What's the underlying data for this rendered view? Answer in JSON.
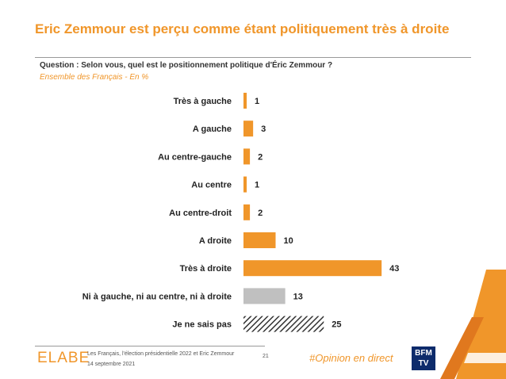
{
  "header": {
    "title": "Eric Zemmour est perçu comme étant politiquement très à droite",
    "question": "Question : Selon vous, quel est le positionnement politique d'Éric Zemmour ?",
    "subtitle": "Ensemble des Français - En  %"
  },
  "colors": {
    "accent": "#f0962a",
    "gray": "#c0c0c0",
    "hatch": "#333333"
  },
  "chart_data": {
    "type": "bar",
    "orientation": "horizontal",
    "categories": [
      "Très à gauche",
      "A gauche",
      "Au centre-gauche",
      "Au centre",
      "Au centre-droit",
      "A droite",
      "Très à droite",
      "Ni à gauche, ni au centre, ni à droite",
      "Je ne sais pas"
    ],
    "values": [
      1,
      3,
      2,
      1,
      2,
      10,
      43,
      13,
      25
    ],
    "bar_styles": [
      "orange",
      "orange",
      "orange",
      "orange",
      "orange",
      "orange",
      "orange",
      "gray",
      "hatched"
    ],
    "title": "Eric Zemmour est perçu comme étant politiquement très à droite",
    "xlabel": "",
    "ylabel": "",
    "unit": "%",
    "grid": false,
    "legend": "none"
  },
  "footer": {
    "logo": "ELABE",
    "source": "Les Français, l'élection présidentielle 2022 et Eric Zemmour",
    "date": "14 septembre 2021",
    "page": "21",
    "hashtag": "#Opinion en direct",
    "broadcaster_logo": "BFM TV"
  }
}
